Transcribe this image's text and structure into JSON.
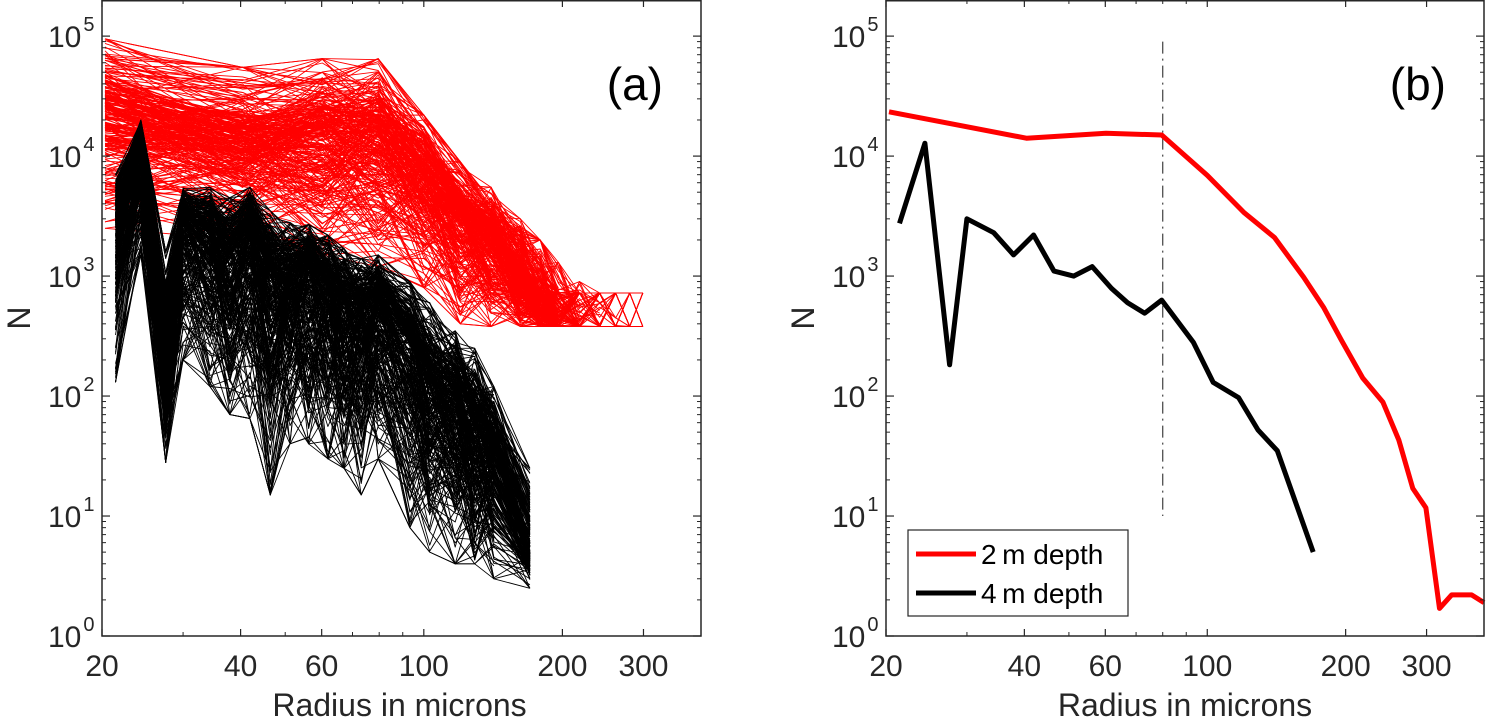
{
  "chart_data": [
    {
      "panel": "a",
      "type": "line",
      "panel_label": "(a)",
      "xlabel": "Radius in microns",
      "ylabel": "N",
      "xscale": "log",
      "yscale": "log",
      "xlim": [
        20,
        400
      ],
      "ylim": [
        1,
        200000
      ],
      "xticks": [
        20,
        40,
        60,
        100,
        200,
        300
      ],
      "xtick_labels": [
        "20",
        "40",
        "60",
        "100",
        "200",
        "300"
      ],
      "yticks": [
        1,
        10,
        100,
        1000,
        10000,
        100000
      ],
      "ytick_labels": [
        {
          "base": "10",
          "exp": "0"
        },
        {
          "base": "10",
          "exp": "1"
        },
        {
          "base": "10",
          "exp": "2"
        },
        {
          "base": "10",
          "exp": "3"
        },
        {
          "base": "10",
          "exp": "4"
        },
        {
          "base": "10",
          "exp": "5"
        }
      ],
      "grid": false,
      "description": "Ensemble of many individual size distributions (spaghetti plot): red = 2 m depth profiles, black = 4 m depth profiles",
      "series": [
        {
          "name": "2 m depth (individual profiles)",
          "color": "#ff0000",
          "count_approx": 300,
          "x": [
            20.3,
            40.4,
            60.2,
            79.6,
            100,
            120,
            140,
            162,
            179,
            196,
            218,
            241,
            261,
            280,
            299,
            320
          ],
          "upper": [
            95000,
            55000,
            65000,
            65000,
            22000,
            9000,
            5500,
            3000,
            2000,
            1300,
            900,
            600,
            450,
            380,
            380,
            380
          ],
          "median": [
            23000,
            14000,
            15000,
            15000,
            6900,
            3400,
            2100,
            980,
            550,
            290,
            140,
            90,
            43,
            17,
            12,
            2
          ],
          "lower": [
            2500,
            2000,
            1500,
            1200,
            800,
            400,
            300,
            300,
            300,
            300,
            350,
            380,
            380,
            380,
            380,
            380
          ],
          "floor_value": 380
        },
        {
          "name": "4 m depth (individual profiles)",
          "color": "#000000",
          "count_approx": 300,
          "x": [
            21.4,
            24.3,
            27.5,
            30,
            34.3,
            37.9,
            41.9,
            46.4,
            51.2,
            56.2,
            61.9,
            67.1,
            73.1,
            79.6,
            93.3,
            103,
            117,
            129,
            142,
            170
          ],
          "upper": [
            7000,
            20000,
            1600,
            5500,
            5500,
            4500,
            5500,
            3500,
            2800,
            2700,
            2200,
            1700,
            1400,
            1500,
            900,
            600,
            350,
            250,
            120,
            25
          ],
          "median": [
            2750,
            12800,
            182,
            3000,
            2300,
            1500,
            2200,
            1100,
            1000,
            1200,
            790,
            600,
            490,
            630,
            280,
            130,
            97,
            52,
            35,
            5
          ],
          "lower": [
            130,
            1500,
            28,
            200,
            120,
            70,
            65,
            15,
            40,
            40,
            30,
            25,
            15,
            30,
            8,
            5,
            4,
            4,
            3,
            2.5
          ]
        }
      ]
    },
    {
      "panel": "b",
      "type": "line",
      "panel_label": "(b)",
      "xlabel": "Radius in microns",
      "ylabel": "N",
      "xscale": "log",
      "yscale": "log",
      "xlim": [
        20,
        400
      ],
      "ylim": [
        1,
        200000
      ],
      "xticks": [
        20,
        40,
        60,
        100,
        200,
        300
      ],
      "xtick_labels": [
        "20",
        "40",
        "60",
        "100",
        "200",
        "300"
      ],
      "yticks": [
        1,
        10,
        100,
        1000,
        10000,
        100000
      ],
      "ytick_labels": [
        {
          "base": "10",
          "exp": "0"
        },
        {
          "base": "10",
          "exp": "1"
        },
        {
          "base": "10",
          "exp": "2"
        },
        {
          "base": "10",
          "exp": "3"
        },
        {
          "base": "10",
          "exp": "4"
        },
        {
          "base": "10",
          "exp": "5"
        }
      ],
      "grid": false,
      "legend": {
        "placement": "bottom-left",
        "entries": [
          {
            "label": "2 m depth",
            "color": "#ff0000"
          },
          {
            "label": "4 m depth",
            "color": "#000000"
          }
        ]
      },
      "series": [
        {
          "name": "2 m depth",
          "color": "#ff0000",
          "x": [
            20.3,
            40.4,
            60.2,
            79.6,
            100,
            120,
            140,
            162,
            179,
            196,
            218,
            241,
            261,
            280,
            299,
            320,
            340,
            376,
            400
          ],
          "y": [
            23400,
            14100,
            15500,
            15000,
            6900,
            3400,
            2100,
            980,
            550,
            290,
            141,
            89,
            43,
            17,
            11.7,
            1.7,
            2.2,
            2.2,
            1.9
          ]
        },
        {
          "name": "4 m depth",
          "color": "#000000",
          "x": [
            21.4,
            24.3,
            27.5,
            30,
            34.3,
            37.9,
            41.9,
            46.4,
            51.2,
            56.2,
            61.9,
            67.1,
            73.1,
            79.6,
            93.3,
            103,
            117,
            129,
            142,
            170
          ],
          "y": [
            2750,
            12800,
            182,
            3000,
            2300,
            1500,
            2200,
            1100,
            1000,
            1200,
            790,
            600,
            490,
            630,
            280,
            130,
            97,
            52,
            35,
            5
          ]
        }
      ],
      "annotations": [
        {
          "type": "vertical-dash-dot-line",
          "x": 80,
          "y_range": [
            10,
            90000
          ],
          "color": "#404040"
        }
      ]
    }
  ]
}
